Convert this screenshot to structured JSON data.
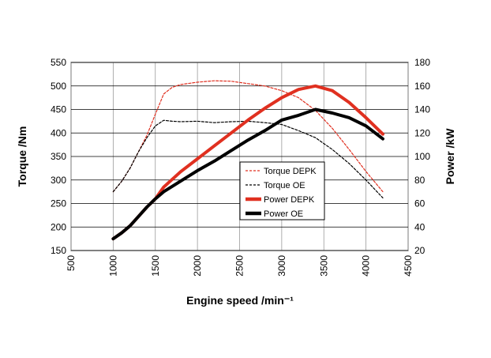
{
  "chart_data": {
    "type": "line",
    "xlabel": "Engine speed /min⁻¹",
    "ylabel_left": "Torque /Nm",
    "ylabel_right": "Power /kW",
    "x_ticks": [
      500,
      1000,
      1500,
      2000,
      2500,
      3000,
      3500,
      4000,
      4500
    ],
    "y_left_ticks": [
      150,
      200,
      250,
      300,
      350,
      400,
      450,
      500,
      550
    ],
    "y_right_ticks": [
      20,
      40,
      60,
      80,
      100,
      120,
      140,
      160,
      180
    ],
    "xlim": [
      500,
      4500
    ],
    "ylim_left": [
      150,
      550
    ],
    "ylim_right": [
      20,
      180
    ],
    "grid": "vertical and horizontal major",
    "legend_position": "center",
    "series": [
      {
        "name": "Torque DEPK",
        "axis": "left",
        "style": "dashed",
        "color": "#e03020",
        "x": [
          1000,
          1100,
          1200,
          1300,
          1400,
          1500,
          1600,
          1700,
          1800,
          2000,
          2200,
          2400,
          2600,
          2800,
          3000,
          3200,
          3400,
          3600,
          3800,
          4000,
          4200
        ],
        "y": [
          275,
          297,
          325,
          360,
          395,
          440,
          483,
          497,
          503,
          508,
          511,
          510,
          505,
          500,
          490,
          475,
          448,
          410,
          365,
          318,
          275
        ]
      },
      {
        "name": "Torque OE",
        "axis": "left",
        "style": "dashed",
        "color": "#000000",
        "x": [
          1000,
          1100,
          1200,
          1300,
          1400,
          1500,
          1600,
          1700,
          1800,
          2000,
          2200,
          2400,
          2600,
          2800,
          3000,
          3200,
          3400,
          3600,
          3800,
          4000,
          4200
        ],
        "y": [
          275,
          297,
          325,
          360,
          390,
          415,
          427,
          425,
          424,
          425,
          422,
          424,
          425,
          422,
          418,
          405,
          390,
          365,
          335,
          300,
          262
        ]
      },
      {
        "name": "Power DEPK",
        "axis": "right",
        "style": "solid",
        "color": "#e03020",
        "x": [
          1000,
          1100,
          1200,
          1300,
          1400,
          1500,
          1600,
          1800,
          2000,
          2200,
          2400,
          2600,
          2800,
          3000,
          3200,
          3400,
          3600,
          3800,
          4000,
          4200
        ],
        "y": [
          30,
          35,
          41,
          49,
          57,
          64,
          74,
          87,
          98,
          109,
          120,
          131,
          141,
          150,
          157,
          160,
          156,
          146,
          133,
          119
        ]
      },
      {
        "name": "Power OE",
        "axis": "right",
        "style": "solid",
        "color": "#000000",
        "x": [
          1000,
          1100,
          1200,
          1300,
          1400,
          1500,
          1600,
          1800,
          2000,
          2200,
          2400,
          2600,
          2800,
          3000,
          3200,
          3400,
          3600,
          3800,
          4000,
          4200
        ],
        "y": [
          30,
          35,
          41,
          49,
          57,
          64,
          70,
          79,
          88,
          96,
          105,
          114,
          122,
          131,
          135,
          140,
          137,
          133,
          126,
          115
        ]
      }
    ]
  }
}
